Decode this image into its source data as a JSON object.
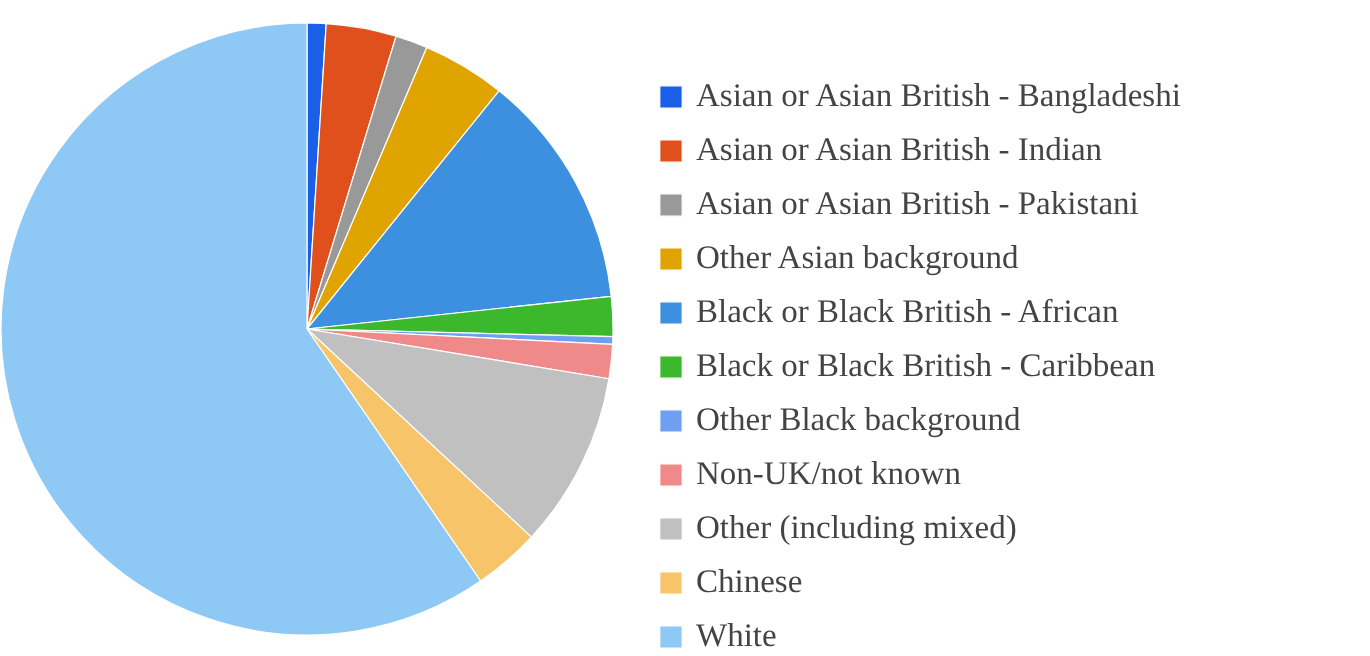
{
  "chart_data": {
    "type": "pie",
    "categories": [
      "Asian or Asian British - Bangladeshi",
      "Asian or Asian British - Indian",
      "Asian or Asian British - Pakistani",
      "Other Asian background",
      "Black or Black British - African",
      "Black or Black British - Caribbean",
      "Other Black background",
      "Non-UK/not known",
      "Other (including mixed)",
      "Chinese",
      "White"
    ],
    "values": [
      1.0,
      3.7,
      1.7,
      4.4,
      12.5,
      2.1,
      0.4,
      1.8,
      9.3,
      3.5,
      59.6
    ],
    "colors": [
      "#1a5fe8",
      "#e0501c",
      "#999999",
      "#e0a400",
      "#3d8fe0",
      "#3cb82c",
      "#6f9ff0",
      "#f08a8a",
      "#c0c0c0",
      "#f7c46a",
      "#8ec8f4"
    ],
    "legend": "right"
  }
}
